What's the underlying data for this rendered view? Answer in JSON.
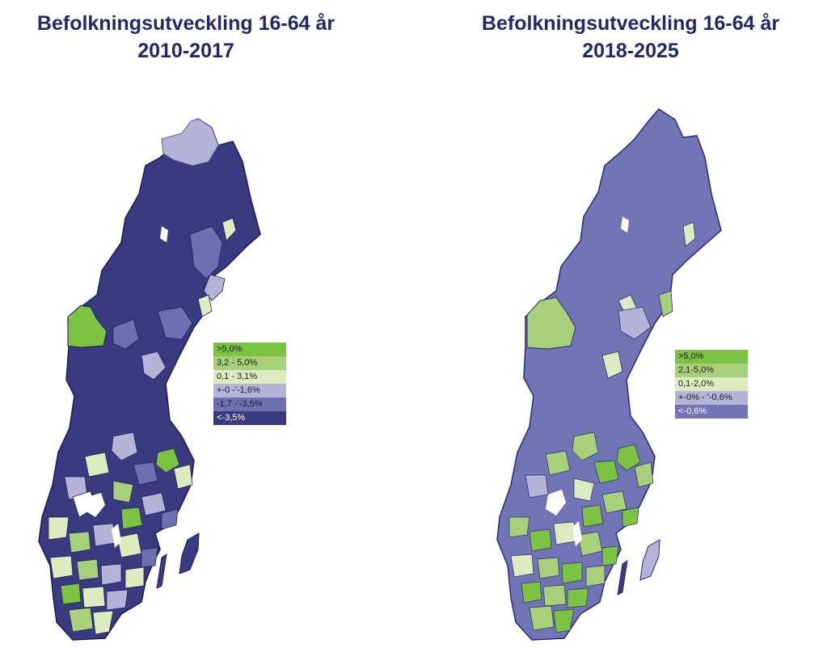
{
  "maps": [
    {
      "title_line1": "Befolkningsutveckling 16-64 år",
      "title_line2": "2010-2017",
      "legend": [
        {
          "label": ">5,0%",
          "color": "#7cc243",
          "text_color": "#1a1a1a"
        },
        {
          "label": "3,2 - 5,0%",
          "color": "#a8d07a",
          "text_color": "#1a1a1a"
        },
        {
          "label": "0,1 - 3,1%",
          "color": "#dcebc0",
          "text_color": "#1a1a1a"
        },
        {
          "label": "+-0 -'-1,6%",
          "color": "#b3b4d8",
          "text_color": "#1a1a1a"
        },
        {
          "label": "-1,7 -'-3,5%",
          "color": "#6d70b0",
          "text_color": "#1a1a1a"
        },
        {
          "label": "<-3,5%",
          "color": "#3a3a80",
          "text_color": "#ffffff"
        }
      ]
    },
    {
      "title_line1": "Befolkningsutveckling 16-64 år",
      "title_line2": "2018-2025",
      "legend": [
        {
          "label": ">5,0%",
          "color": "#7cc243",
          "text_color": "#1a1a1a"
        },
        {
          "label": "2,1-5,0%",
          "color": "#a8d07a",
          "text_color": "#1a1a1a"
        },
        {
          "label": "0,1-2,0%",
          "color": "#dcebc0",
          "text_color": "#1a1a1a"
        },
        {
          "label": "+-0%  -  '-0,6%",
          "color": "#b3b4d8",
          "text_color": "#1a1a1a"
        },
        {
          "label": "<-0,6%",
          "color": "#7275b5",
          "text_color": "#ffffff"
        }
      ]
    }
  ]
}
